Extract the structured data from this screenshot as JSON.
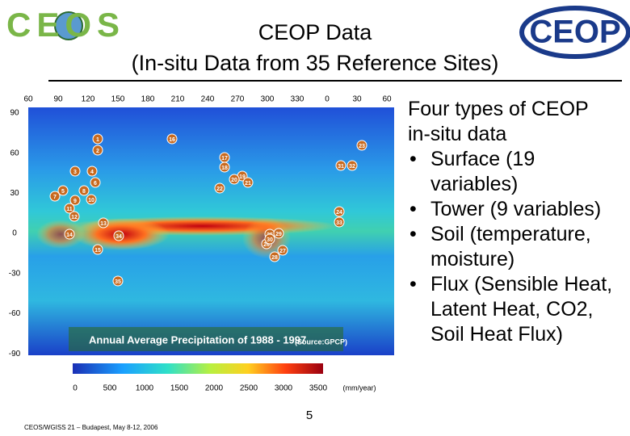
{
  "header": {
    "logo_left": "CEOS",
    "title": "CEOP Data",
    "subtitle": "(In-situ Data from 35 Reference Sites)",
    "logo_right": "CEOP"
  },
  "map": {
    "top_labels": [
      "60",
      "90",
      "120",
      "150",
      "180",
      "210",
      "240",
      "270",
      "300",
      "330",
      "0",
      "30",
      "60"
    ],
    "left_labels": [
      "90",
      "60",
      "30",
      "0",
      "-30",
      "-60",
      "-90"
    ],
    "caption": "Annual Average Precipitation of 1988 - 1997",
    "source": "(Source:GPCP)",
    "sites": [
      "1",
      "2",
      "3",
      "4",
      "5",
      "6",
      "7",
      "8",
      "9",
      "10",
      "11",
      "12",
      "13",
      "14",
      "15",
      "16",
      "17",
      "18",
      "19",
      "20",
      "21",
      "22",
      "23",
      "24",
      "25",
      "26",
      "27",
      "28",
      "29",
      "30",
      "31",
      "32",
      "33",
      "34",
      "35"
    ],
    "colorbar_labels": [
      "0",
      "500",
      "1000",
      "1500",
      "2000",
      "2500",
      "3000",
      "3500"
    ],
    "colorbar_unit": "(mm/year)"
  },
  "text": {
    "heading": "Four types of CEOP in-situ data",
    "bullets": [
      "Surface (19 variables)",
      "Tower (9 variables)",
      "Soil (temperature, moisture)",
      "Flux (Sensible Heat, Latent Heat, CO2, Soil Heat Flux)"
    ]
  },
  "footer": {
    "note": "CEOS/WGISS 21 – Budapest, May 8-12, 2006",
    "page": "5"
  }
}
